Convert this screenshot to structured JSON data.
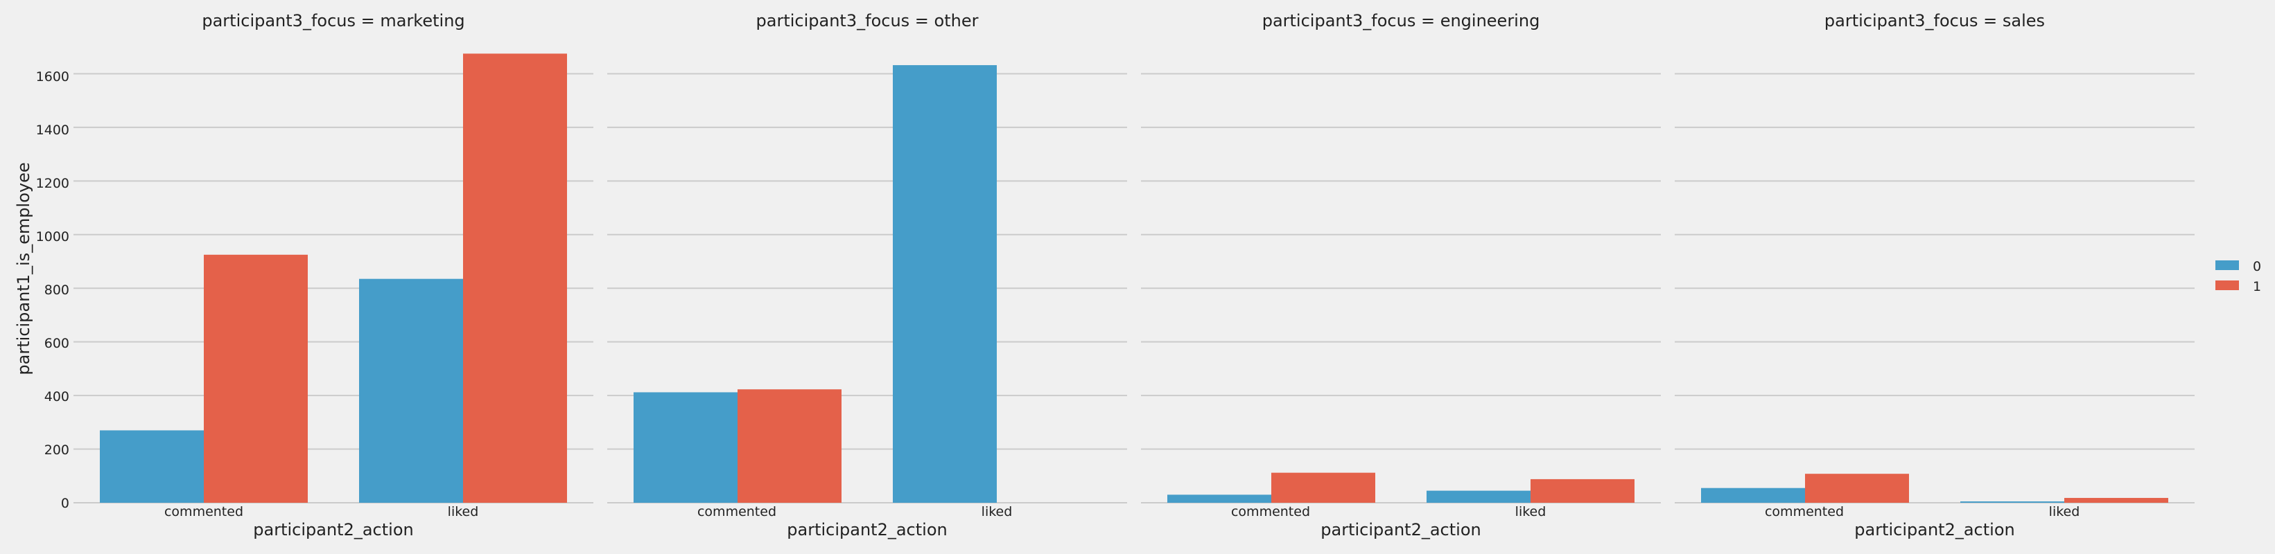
{
  "chart_data": {
    "type": "bar",
    "facet_titles": [
      "participant3_focus = marketing",
      "participant3_focus = other",
      "participant3_focus = engineering",
      "participant3_focus = sales"
    ],
    "categories": [
      "commented",
      "liked"
    ],
    "xlabel": "participant2_action",
    "ylabel": "participant1_is_employee",
    "ylim": [
      0,
      1720
    ],
    "yticks": [
      0,
      200,
      400,
      600,
      800,
      1000,
      1200,
      1400,
      1600
    ],
    "grid": true,
    "legend_placement": "right",
    "series": [
      {
        "name": "0",
        "color": "#459dc9"
      },
      {
        "name": "1",
        "color": "#e4614a"
      }
    ],
    "facets": [
      {
        "values": [
          [
            270,
            835
          ],
          [
            925,
            1675
          ]
        ]
      },
      {
        "values": [
          [
            412,
            1632
          ],
          [
            423,
            null
          ]
        ]
      },
      {
        "values": [
          [
            30,
            45
          ],
          [
            112,
            88
          ]
        ]
      },
      {
        "values": [
          [
            55,
            5
          ],
          [
            108,
            18
          ]
        ]
      }
    ]
  }
}
